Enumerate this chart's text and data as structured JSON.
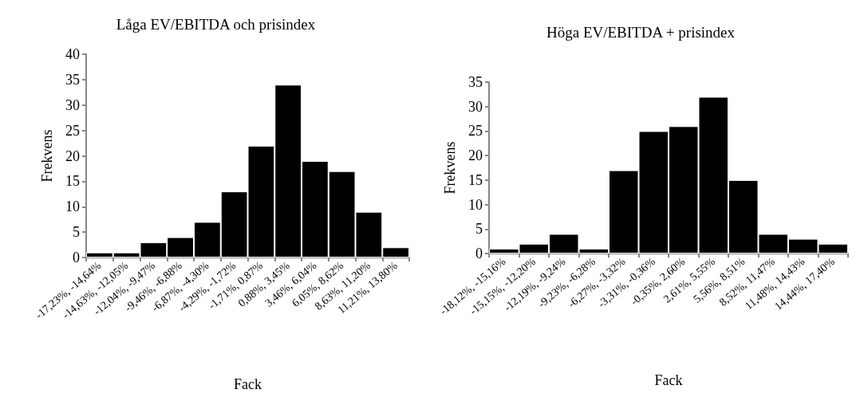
{
  "chart_data": [
    {
      "type": "bar",
      "title": "Låga EV/EBITDA och prisindex",
      "xlabel": "Fack",
      "ylabel": "Frekvens",
      "categories": [
        "-17,23%, -14,64%",
        "-14,63%, -12,05%",
        "-12,04%, -9,47%",
        "-9,46%, -6,88%",
        "-6,87%, -4,30%",
        "-4,29%, -1,72%",
        "-1,71%, 0,87%",
        "0,88%, 3,45%",
        "3,46%, 6,04%",
        "6,05%, 8,62%",
        "8,63%, 11,20%",
        "11,21%, 13,80%"
      ],
      "values": [
        1,
        1,
        3,
        4,
        7,
        13,
        22,
        34,
        19,
        17,
        9,
        2
      ],
      "color": "#000000",
      "ylim": [
        0,
        40
      ],
      "yticks": [
        0,
        5,
        10,
        15,
        20,
        25,
        30,
        35,
        40
      ],
      "grid": false
    },
    {
      "type": "bar",
      "title": "Höga EV/EBITDA + prisindex",
      "xlabel": "Fack",
      "ylabel": "Frekvens",
      "categories": [
        "-18,12%, -15,16%",
        "-15,15%, -12,20%",
        "-12,19%, -9,24%",
        "-9,23%, -6,28%",
        "-6,27%, -3,32%",
        "-3,31%, -0,36%",
        "-0,35%, 2,60%",
        "2,61%, 5,55%",
        "5,56%, 8,51%",
        "8,52%, 11,47%",
        "11,48%, 14,43%",
        "14,44%, 17,40%"
      ],
      "values": [
        1,
        2,
        4,
        1,
        17,
        25,
        26,
        32,
        15,
        4,
        3,
        2
      ],
      "color": "#000000",
      "ylim": [
        0,
        35
      ],
      "yticks": [
        0,
        5,
        10,
        15,
        20,
        25,
        30,
        35
      ],
      "grid": false
    }
  ]
}
